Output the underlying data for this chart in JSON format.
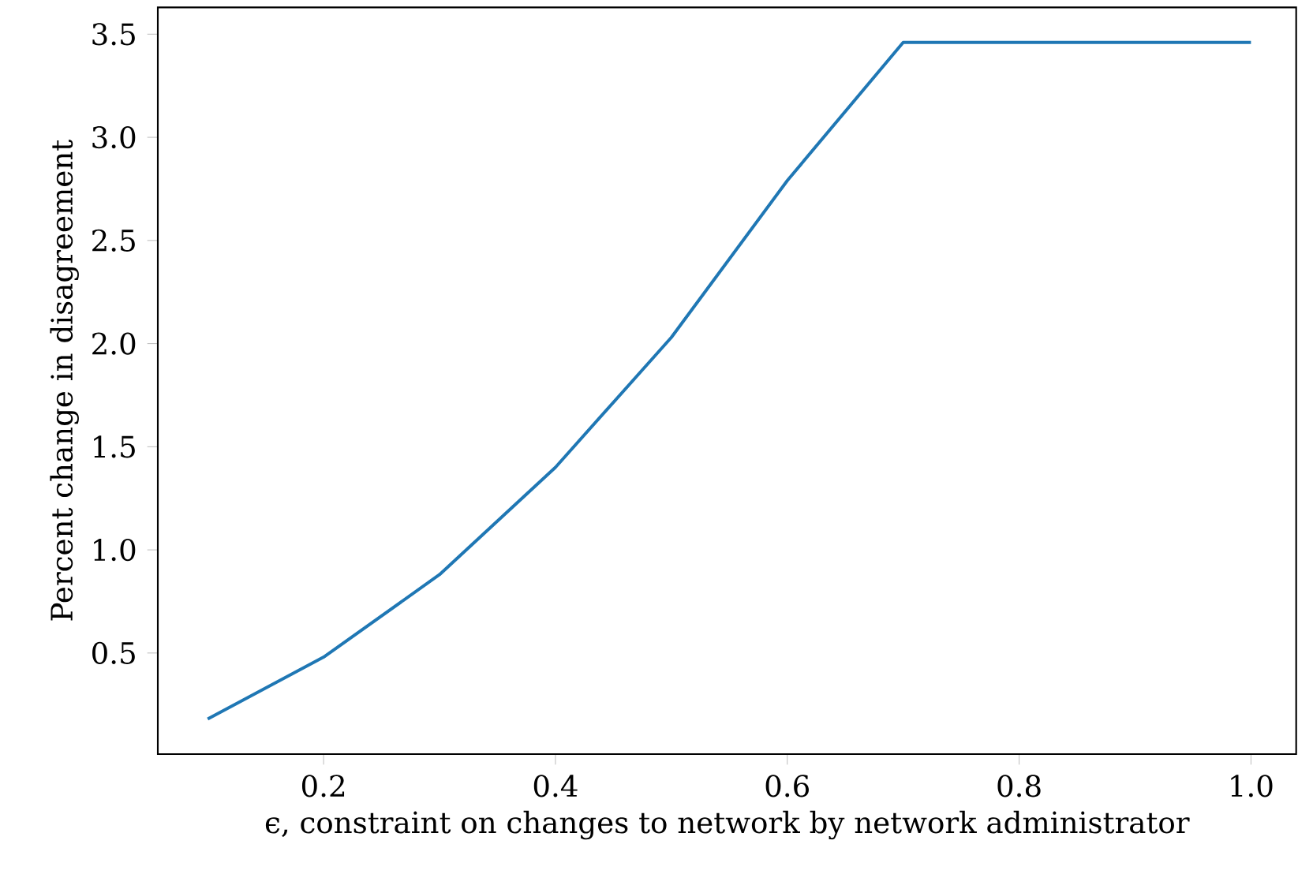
{
  "chart_data": {
    "type": "line",
    "xlabel": "ϵ, constraint on changes to network by network administrator",
    "ylabel": "Percent change in disagreement",
    "x": [
      0.1,
      0.2,
      0.3,
      0.4,
      0.5,
      0.6,
      0.7,
      0.8,
      0.9,
      1.0
    ],
    "series": [
      {
        "color": "#1f77b4",
        "values": [
          0.18,
          0.48,
          0.88,
          1.4,
          2.03,
          2.79,
          3.46,
          3.46,
          3.46,
          3.46
        ]
      }
    ],
    "xlim": [
      0.057,
      1.039
    ],
    "ylim": [
      0.01,
      3.63
    ],
    "xticks": [
      0.2,
      0.4,
      0.6,
      0.8,
      {
        "value": 1.0,
        "label": "1.0"
      }
    ],
    "yticks": [
      0.5,
      {
        "value": 1.0,
        "label": "1.0"
      },
      1.5,
      {
        "value": 2.0,
        "label": "2.0"
      },
      2.5,
      {
        "value": 3.0,
        "label": "3.0"
      },
      3.5
    ],
    "grid": false,
    "marker": "none",
    "line_style": "solid"
  }
}
